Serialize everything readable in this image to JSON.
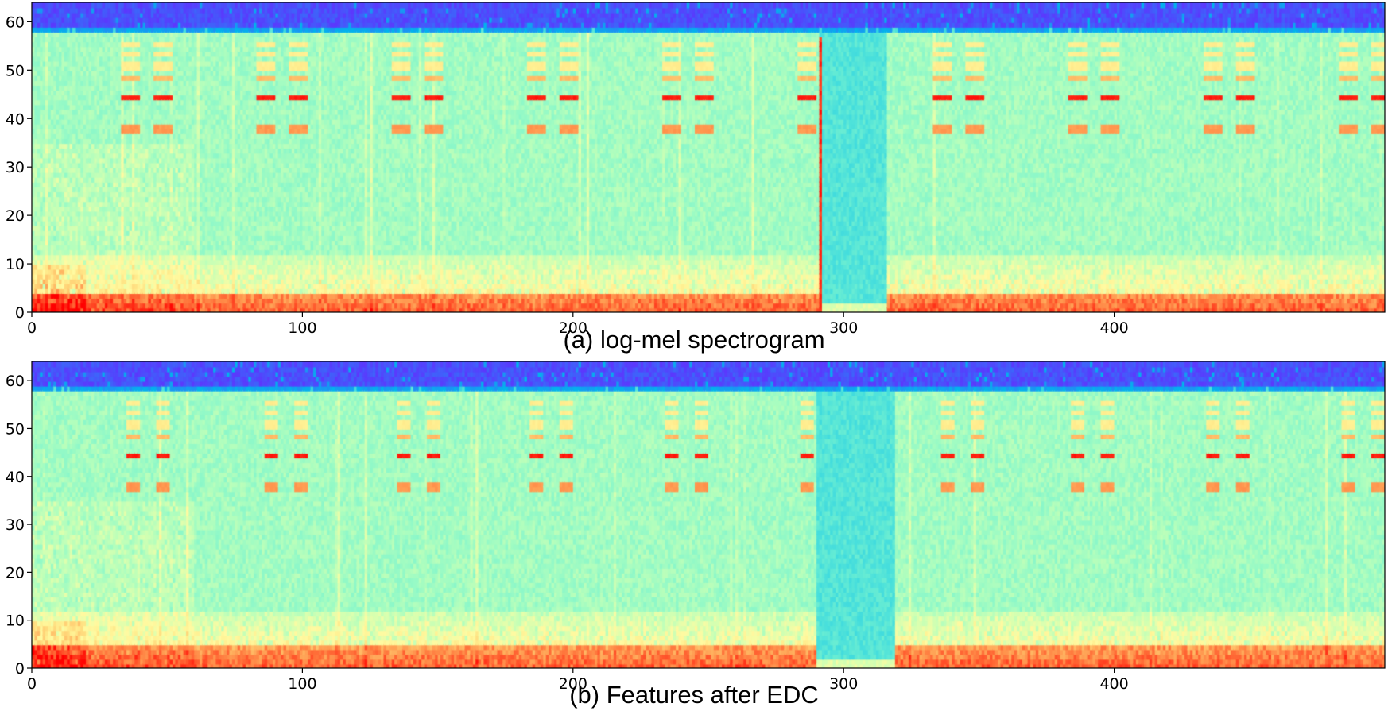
{
  "chart_data": [
    {
      "type": "heatmap",
      "caption": "(a) log-mel spectrogram",
      "title": "",
      "xlabel": "",
      "ylabel": "",
      "xlim": [
        0,
        500
      ],
      "ylim": [
        0,
        64
      ],
      "x_ticks": [
        0,
        100,
        200,
        300,
        400
      ],
      "y_ticks": [
        0,
        10,
        20,
        30,
        40,
        50,
        60
      ],
      "colormap": "rainbow",
      "grid": false,
      "features": {
        "high_band_from_bin": 58,
        "harmonic_bins": [
          37.5,
          44,
          48,
          50.5,
          53,
          55
        ],
        "pulse_pairs_start_frames": [
          33,
          83,
          133,
          183,
          233,
          283,
          333,
          383,
          433,
          483
        ],
        "pulse_pair_offset": 12,
        "pulse_width": 7,
        "low_energy_region_frames": [
          291,
          315
        ],
        "onset_line_frame": 291,
        "strong_low_band_bins": [
          0,
          3
        ]
      }
    },
    {
      "type": "heatmap",
      "caption": "(b) Features after EDC",
      "title": "",
      "xlabel": "",
      "ylabel": "",
      "xlim": [
        0,
        500
      ],
      "ylim": [
        0,
        64
      ],
      "x_ticks": [
        0,
        100,
        200,
        300,
        400
      ],
      "y_ticks": [
        0,
        10,
        20,
        30,
        40,
        50,
        60
      ],
      "colormap": "rainbow",
      "grid": false,
      "features": {
        "high_band_from_bin": 58,
        "harmonic_bins": [
          37.5,
          44,
          48,
          50.5,
          53,
          55
        ],
        "pulse_pairs_start_frames": [
          35,
          86,
          135,
          184,
          234,
          284,
          336,
          384,
          434,
          484
        ],
        "pulse_pair_offset": 11,
        "pulse_width": 5,
        "low_energy_region_frames": [
          290,
          318
        ],
        "onset_line_frame": null,
        "strong_low_band_bins": [
          0,
          4
        ]
      }
    }
  ]
}
